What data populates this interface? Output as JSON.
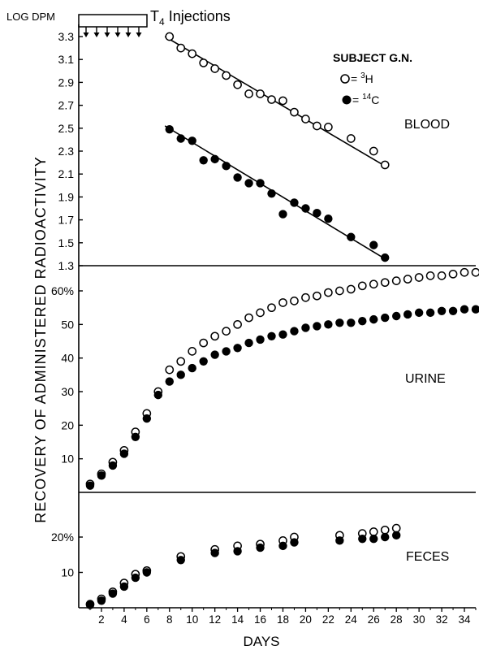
{
  "header": {
    "ylabel_top": "LOG DPM",
    "injections_label": "T",
    "injections_sub": "4",
    "injections_rest": " Injections"
  },
  "yaxis_title": "RECOVERY OF ADMINISTERED RADIOACTIVITY",
  "xaxis_title": "DAYS",
  "legend": {
    "subject": "SUBJECT G.N.",
    "h_label": "= ",
    "h_sup": "3",
    "h_rest": "H",
    "c_label": "= ",
    "c_sup": "14",
    "c_rest": "C"
  },
  "colors": {
    "ink": "#000000",
    "paper": "#ffffff"
  },
  "chart_data": [
    {
      "type": "scatter",
      "panel_label": "BLOOD",
      "ylabel": "LOG DPM",
      "ylim": [
        1.3,
        3.4
      ],
      "yticks": [
        1.3,
        1.5,
        1.7,
        1.9,
        2.1,
        2.3,
        2.5,
        2.7,
        2.9,
        3.1,
        3.3
      ],
      "ytick_labels": [
        "1.3",
        "1.5",
        "1.7",
        "1.9",
        "2.1",
        "2.3",
        "2.5",
        "2.7",
        "2.9",
        "3.1",
        "3.3"
      ],
      "injection_days": [
        1,
        2,
        3,
        4,
        5,
        6
      ],
      "series": [
        {
          "name": "3H",
          "marker": "open",
          "x": [
            8,
            9,
            10,
            11,
            12,
            13,
            14,
            15,
            16,
            17,
            18,
            19,
            20,
            21,
            22,
            24,
            26,
            27
          ],
          "y": [
            3.3,
            3.2,
            3.15,
            3.07,
            3.02,
            2.96,
            2.88,
            2.8,
            2.8,
            2.75,
            2.74,
            2.64,
            2.58,
            2.52,
            2.51,
            2.41,
            2.3,
            2.18
          ],
          "fit": [
            [
              7.6,
              3.3
            ],
            [
              27,
              2.17
            ]
          ]
        },
        {
          "name": "14C",
          "marker": "filled",
          "x": [
            8,
            9,
            10,
            11,
            12,
            13,
            14,
            15,
            16,
            17,
            18,
            19,
            20,
            21,
            22,
            24,
            26,
            27
          ],
          "y": [
            2.49,
            2.41,
            2.39,
            2.22,
            2.23,
            2.17,
            2.07,
            2.02,
            2.02,
            1.93,
            1.75,
            1.85,
            1.8,
            1.76,
            1.71,
            1.55,
            1.48,
            1.37
          ],
          "fit": [
            [
              7.6,
              2.52
            ],
            [
              27,
              1.36
            ]
          ]
        }
      ]
    },
    {
      "type": "scatter",
      "panel_label": "URINE",
      "ylim": [
        0,
        62
      ],
      "yticks": [
        10,
        20,
        30,
        40,
        50,
        60
      ],
      "ytick_labels": [
        "10",
        "20",
        "30",
        "40",
        "50",
        "60"
      ],
      "ytick_suffix": "%",
      "series": [
        {
          "name": "3H",
          "marker": "open",
          "x": [
            1,
            2,
            3,
            4,
            5,
            6,
            7,
            8,
            9,
            10,
            11,
            12,
            13,
            14,
            15,
            16,
            17,
            18,
            19,
            20,
            21,
            22,
            23,
            24,
            25,
            26,
            27,
            28,
            29,
            30,
            31,
            32,
            33,
            34,
            35
          ],
          "y": [
            2.5,
            5.5,
            9,
            12.5,
            18,
            23.5,
            30,
            36.5,
            39,
            42,
            44.5,
            46.5,
            48,
            50,
            52,
            53.5,
            55,
            56.5,
            57,
            58,
            58.5,
            59.5,
            60,
            60.5,
            61.5,
            62,
            62.5,
            63,
            63.5,
            64,
            64.5,
            64.5,
            65,
            65.5,
            65.5
          ]
        },
        {
          "name": "14C",
          "marker": "filled",
          "x": [
            1,
            2,
            3,
            4,
            5,
            6,
            7,
            8,
            9,
            10,
            11,
            12,
            13,
            14,
            15,
            16,
            17,
            18,
            19,
            20,
            21,
            22,
            23,
            24,
            25,
            26,
            27,
            28,
            29,
            30,
            31,
            32,
            33,
            34,
            35
          ],
          "y": [
            2,
            5,
            8,
            11.5,
            16.5,
            22,
            29,
            33,
            35,
            37,
            39,
            41,
            42,
            43,
            44.5,
            45.5,
            46.5,
            47,
            48,
            49,
            49.5,
            50,
            50.5,
            50.5,
            51,
            51.5,
            52,
            52.5,
            53,
            53.5,
            53.5,
            54,
            54,
            54.5,
            54.5
          ]
        }
      ]
    },
    {
      "type": "scatter",
      "panel_label": "FECES",
      "ylim": [
        0,
        22
      ],
      "yticks": [
        10,
        20
      ],
      "ytick_labels": [
        "10",
        "20"
      ],
      "ytick_suffix": "%",
      "xlabel": "DAYS",
      "xlim": [
        0,
        35
      ],
      "xticks": [
        2,
        4,
        6,
        8,
        10,
        12,
        14,
        16,
        18,
        20,
        22,
        24,
        26,
        28,
        30,
        32,
        34
      ],
      "xtick_labels": [
        "2",
        "4",
        "6",
        "8",
        "10",
        "12",
        "14",
        "16",
        "18",
        "20",
        "22",
        "24",
        "26",
        "28",
        "30",
        "32",
        "34"
      ],
      "series": [
        {
          "name": "3H",
          "marker": "open",
          "x": [
            1,
            2,
            3,
            4,
            5,
            6,
            9,
            12,
            14,
            16,
            18,
            19,
            23,
            25,
            26,
            27,
            28
          ],
          "y": [
            1,
            2.5,
            4.5,
            7,
            9.5,
            10.5,
            14.5,
            16.5,
            17.5,
            18,
            19,
            20,
            20.5,
            21,
            21.5,
            22,
            22.5
          ]
        },
        {
          "name": "14C",
          "marker": "filled",
          "x": [
            1,
            2,
            3,
            4,
            5,
            6,
            9,
            12,
            14,
            16,
            18,
            19,
            23,
            25,
            26,
            27,
            28
          ],
          "y": [
            0.8,
            2,
            4,
            6,
            8.5,
            10,
            13.5,
            15.5,
            16,
            17,
            17.5,
            18.5,
            19,
            19.5,
            19.5,
            20,
            20.5
          ]
        }
      ]
    }
  ]
}
